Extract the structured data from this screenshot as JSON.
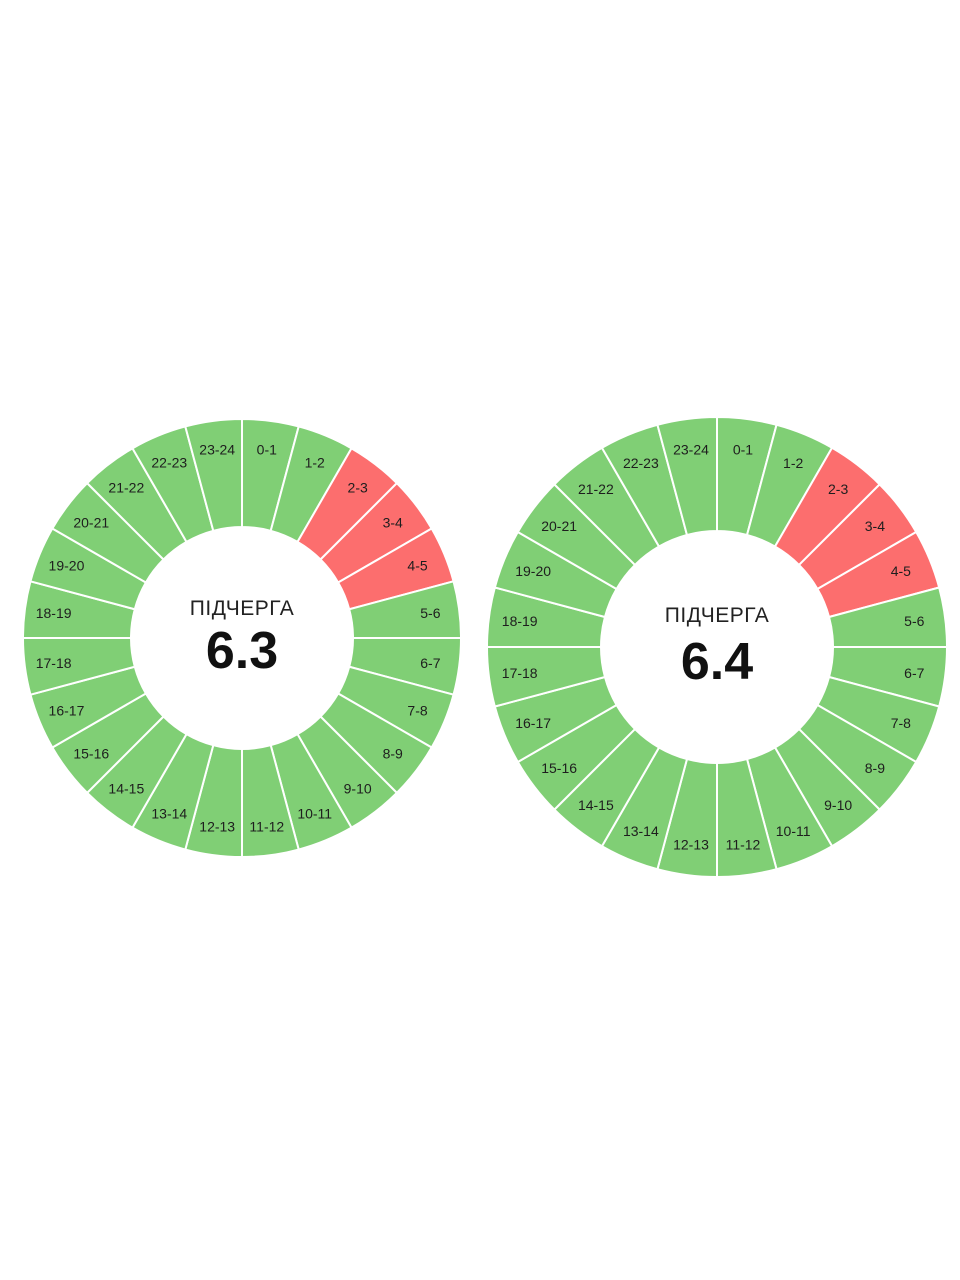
{
  "colors": {
    "on": "#80cf75",
    "off": "#fc6e6e",
    "separator": "#ffffff",
    "background": "#ffffff"
  },
  "chart_data": [
    {
      "type": "pie",
      "subtype": "donut-24h-schedule",
      "caption": "ПІДЧЕРГА",
      "queue": "6.3",
      "hours": [
        "0-1",
        "1-2",
        "2-3",
        "3-4",
        "4-5",
        "5-6",
        "6-7",
        "7-8",
        "8-9",
        "9-10",
        "10-11",
        "11-12",
        "12-13",
        "13-14",
        "14-15",
        "15-16",
        "16-17",
        "17-18",
        "18-19",
        "19-20",
        "20-21",
        "21-22",
        "22-23",
        "23-24"
      ],
      "values": [
        1,
        1,
        1,
        1,
        1,
        1,
        1,
        1,
        1,
        1,
        1,
        1,
        1,
        1,
        1,
        1,
        1,
        1,
        1,
        1,
        1,
        1,
        1,
        1
      ],
      "status": [
        "on",
        "on",
        "off",
        "off",
        "off",
        "on",
        "on",
        "on",
        "on",
        "on",
        "on",
        "on",
        "on",
        "on",
        "on",
        "on",
        "on",
        "on",
        "on",
        "on",
        "on",
        "on",
        "on",
        "on"
      ]
    },
    {
      "type": "pie",
      "subtype": "donut-24h-schedule",
      "caption": "ПІДЧЕРГА",
      "queue": "6.4",
      "hours": [
        "0-1",
        "1-2",
        "2-3",
        "3-4",
        "4-5",
        "5-6",
        "6-7",
        "7-8",
        "8-9",
        "9-10",
        "10-11",
        "11-12",
        "12-13",
        "13-14",
        "14-15",
        "15-16",
        "16-17",
        "17-18",
        "18-19",
        "19-20",
        "20-21",
        "21-22",
        "22-23",
        "23-24"
      ],
      "values": [
        1,
        1,
        1,
        1,
        1,
        1,
        1,
        1,
        1,
        1,
        1,
        1,
        1,
        1,
        1,
        1,
        1,
        1,
        1,
        1,
        1,
        1,
        1,
        1
      ],
      "status": [
        "on",
        "on",
        "off",
        "off",
        "off",
        "on",
        "on",
        "on",
        "on",
        "on",
        "on",
        "on",
        "on",
        "on",
        "on",
        "on",
        "on",
        "on",
        "on",
        "on",
        "on",
        "on",
        "on",
        "on"
      ]
    }
  ]
}
